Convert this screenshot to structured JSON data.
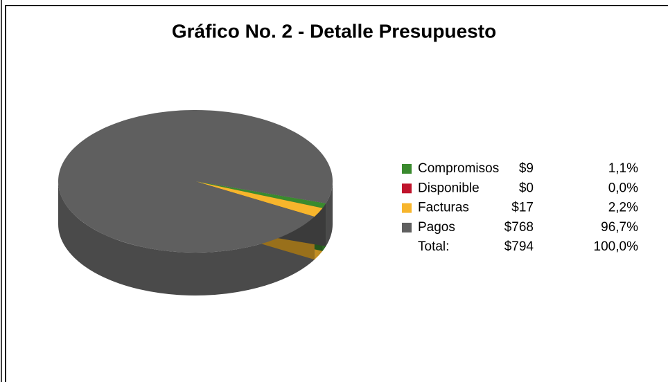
{
  "chart_data": {
    "type": "pie",
    "title": "Gráfico No. 2 - Detalle Presupuesto",
    "categories": [
      "Compromisos",
      "Disponible",
      "Facturas",
      "Pagos"
    ],
    "values": [
      9,
      0,
      17,
      768
    ],
    "value_labels": [
      "$9",
      "$0",
      "$17",
      "$768"
    ],
    "percentages": [
      1.1,
      0,
      2.2,
      96.7
    ],
    "percentage_labels": [
      "1,1%",
      "0,0%",
      "2,2%",
      "96,7%"
    ],
    "colors": [
      "#3a8a2e",
      "#c0142c",
      "#f7b52c",
      "#5f5f5f"
    ],
    "total": {
      "label": "Total:",
      "value": 794,
      "value_label": "$794",
      "percentage": 100,
      "percentage_label": "100,0%"
    },
    "legend": "right"
  }
}
